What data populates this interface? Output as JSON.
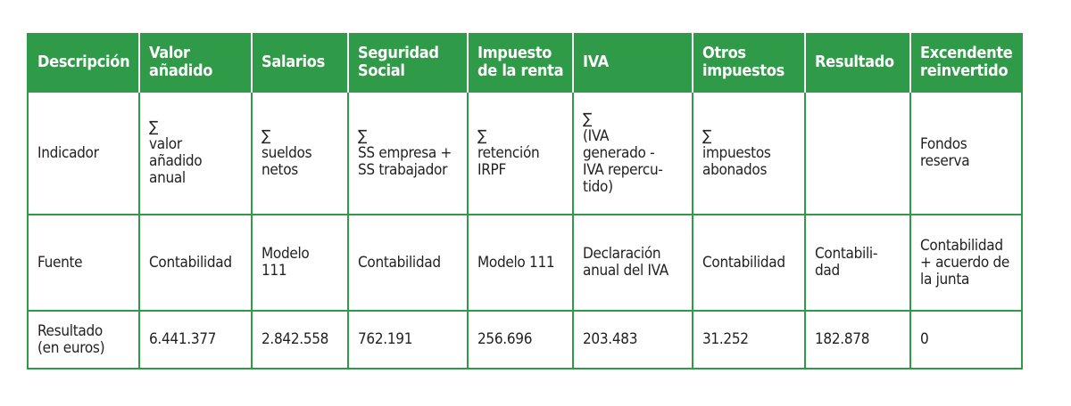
{
  "table": {
    "headers": [
      "Descripción",
      "Valor\nañadido",
      "Salarios",
      "Seguridad\nSocial",
      "Impuesto\nde la renta",
      "IVA",
      "Otros\nimpuestos",
      "Resultado",
      "Excendente\nreinvertido"
    ],
    "rows": {
      "indicador": [
        "Indicador",
        "∑\nvalor\nañadido\nanual",
        "∑\nsueldos\nnetos",
        "∑\nSS empresa +\nSS trabajador",
        "∑\nretención\nIRPF",
        "∑\n(IVA\ngenerado -\nIVA repercu-\ntido)",
        "∑\nimpuestos\nabonados",
        "",
        "Fondos\nreserva"
      ],
      "fuente": [
        "Fuente",
        "Contabilidad",
        "Modelo\n111",
        "Contabilidad",
        "Modelo 111",
        "Declaración\nanual del IVA",
        "Contabilidad",
        "Contabili-\ndad",
        "Contabilidad\n+ acuerdo de\nla junta"
      ],
      "resultado": [
        "Resultado\n(en euros)",
        "6.441.377",
        "2.842.558",
        "762.191",
        "256.696",
        "203.483",
        "31.252",
        "182.878",
        "0"
      ]
    }
  },
  "colors": {
    "header_bg": "#2f9a47",
    "header_text": "#ffffff",
    "border": "#2f9a47",
    "body_text": "#222222"
  }
}
